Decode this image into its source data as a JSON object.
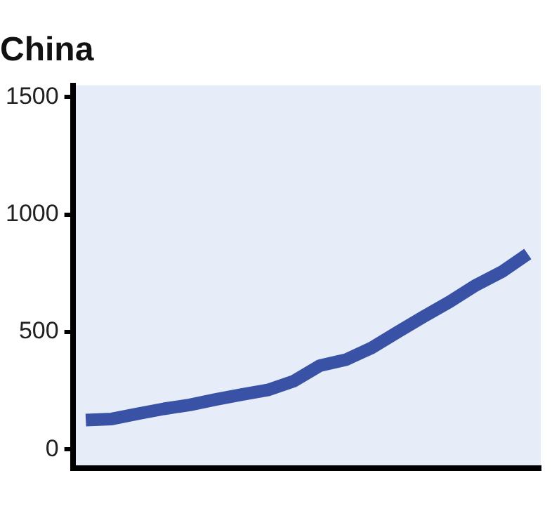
{
  "chart_data": {
    "type": "line",
    "title": "China",
    "categories": [
      null,
      null,
      null,
      null,
      null,
      null,
      null,
      null,
      null,
      null,
      null,
      null,
      null,
      null,
      null,
      null,
      null,
      null
    ],
    "series": [
      {
        "color": "#3a52a6",
        "values": [
          125,
          130,
          152,
          173,
          190,
          213,
          234,
          253,
          291,
          357,
          382,
          433,
          500,
          566,
          629,
          699,
          756,
          832
        ]
      }
    ],
    "ylim": [
      -80,
      1550
    ],
    "yticks": [
      0,
      500,
      1000,
      1500
    ],
    "grid": false,
    "legend": false,
    "marker": "none",
    "line_style": "solid"
  }
}
